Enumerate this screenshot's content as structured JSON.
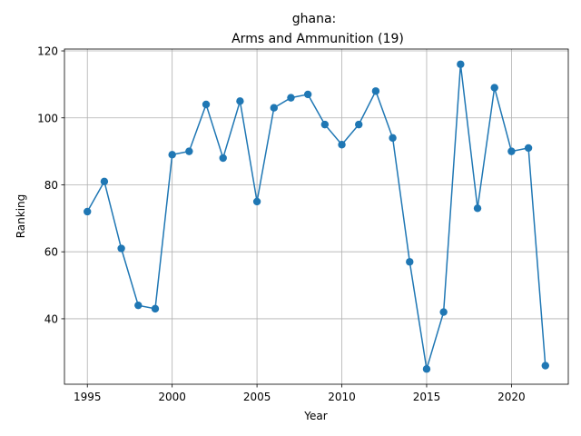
{
  "chart_data": {
    "type": "line",
    "title_line1": "ghana:",
    "title_line2": "Arms and Ammunition (19)",
    "xlabel": "Year",
    "ylabel": "Ranking",
    "xlim": [
      1993.65,
      2023.35
    ],
    "ylim": [
      20.45,
      120.55
    ],
    "xticks": [
      1995,
      2000,
      2005,
      2010,
      2015,
      2020
    ],
    "yticks": [
      40,
      60,
      80,
      100,
      120
    ],
    "grid": true,
    "line_color": "#1f77b4",
    "series": [
      {
        "x": [
          1995,
          1996,
          1997,
          1998,
          1999,
          2000,
          2001,
          2002,
          2003,
          2004,
          2005,
          2006,
          2007,
          2008,
          2009,
          2010,
          2011,
          2012,
          2013,
          2014,
          2015,
          2016,
          2017,
          2018,
          2019,
          2020,
          2021,
          2022
        ],
        "values": [
          72,
          81,
          61,
          44,
          43,
          89,
          90,
          104,
          88,
          105,
          75,
          103,
          106,
          107,
          98,
          92,
          98,
          108,
          94,
          57,
          25,
          42,
          116,
          73,
          109,
          90,
          91,
          26
        ]
      }
    ]
  }
}
